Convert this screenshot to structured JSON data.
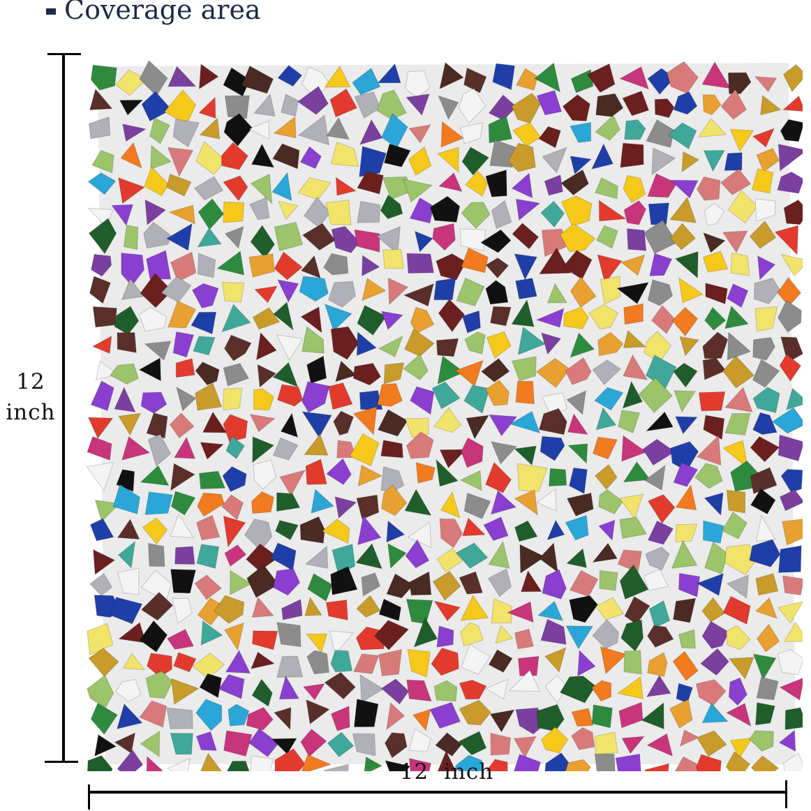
{
  "title": "Coverage area",
  "dimensions": {
    "height_value": "12",
    "height_unit": "inch",
    "width_label": "12  inch"
  },
  "colors": {
    "title": "#1b2a4a",
    "grout": "#ebebeb",
    "tile_palette": [
      "#e23b2e",
      "#f27a1f",
      "#f5c81a",
      "#f2e36a",
      "#2e8b3e",
      "#1f5e2a",
      "#9bc46b",
      "#1f3fa8",
      "#2aa7d8",
      "#7b3fa0",
      "#c9357a",
      "#d97a7a",
      "#6b1f1f",
      "#4a2a22",
      "#111111",
      "#f4f4f4",
      "#8c8c8c",
      "#c89b2a",
      "#b0b0b8",
      "#8a3fd0",
      "#e8a030",
      "#5a2f2a",
      "#3fa89a"
    ]
  }
}
